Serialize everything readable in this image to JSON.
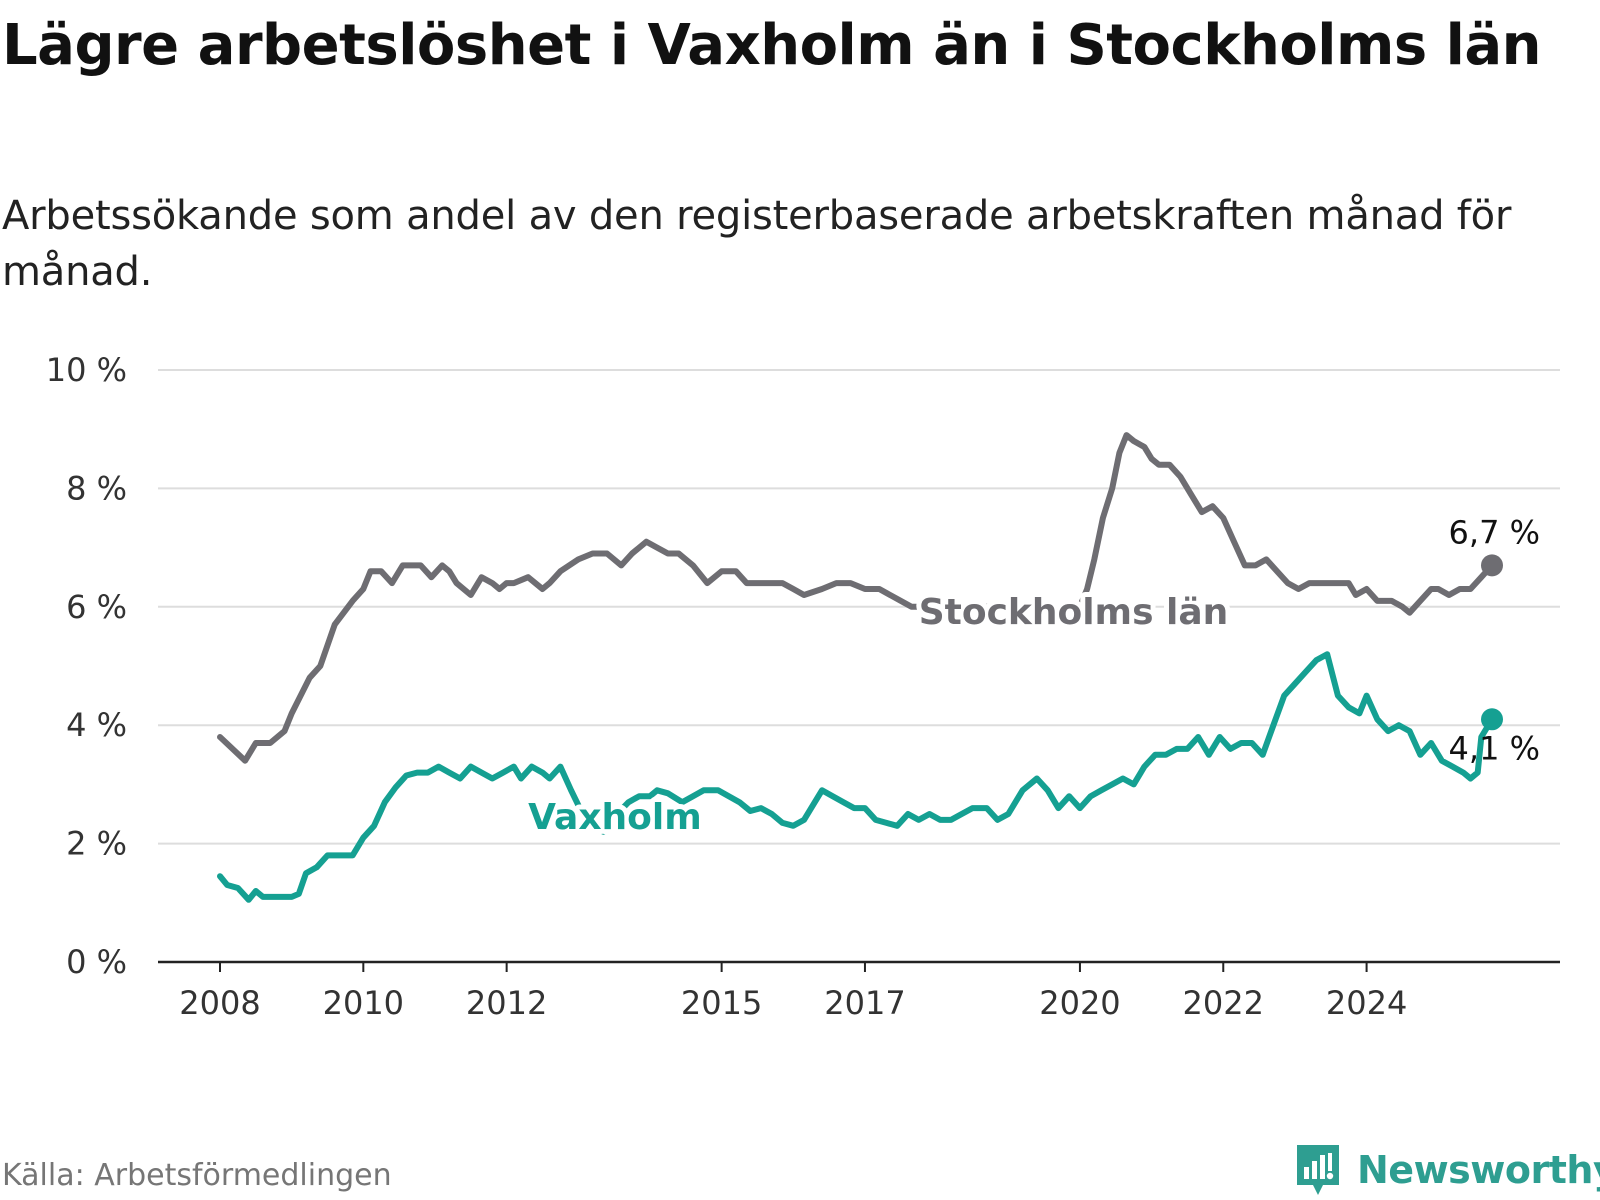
{
  "title": "Lägre arbetslöshet i Vaxholm än i Stockholms län",
  "subtitle": "Arbetssökande som andel av den registerbaserade arbetskraften månad för månad.",
  "source": "Källa: Arbetsförmedlingen",
  "brand": "Newsworthy",
  "colors": {
    "stockholm": "#6e6d72",
    "vaxholm": "#15a092",
    "grid": "#dddddd",
    "axis": "#222222",
    "brand": "#2e9e91"
  },
  "chart_data": {
    "type": "line",
    "title": "Lägre arbetslöshet i Vaxholm än i Stockholms län",
    "xlabel": "",
    "ylabel": "",
    "ylim": [
      0,
      10
    ],
    "xlim": [
      2007.8,
      2026.0
    ],
    "y_ticks": [
      0,
      2,
      4,
      6,
      8,
      10
    ],
    "y_tick_labels": [
      "0 %",
      "2 %",
      "4 %",
      "6 %",
      "8 %",
      "10 %"
    ],
    "x_ticks": [
      2008,
      2010,
      2012,
      2015,
      2017,
      2020,
      2022,
      2024
    ],
    "x_tick_labels": [
      "2008",
      "2010",
      "2012",
      "2015",
      "2017",
      "2020",
      "2022",
      "2024"
    ],
    "grid": true,
    "series": [
      {
        "name": "Stockholms län",
        "end_label": "6,7 %",
        "points": [
          [
            2008.0,
            3.8
          ],
          [
            2008.35,
            3.4
          ],
          [
            2008.5,
            3.7
          ],
          [
            2008.7,
            3.7
          ],
          [
            2008.9,
            3.9
          ],
          [
            2009.0,
            4.2
          ],
          [
            2009.25,
            4.8
          ],
          [
            2009.4,
            5.0
          ],
          [
            2009.6,
            5.7
          ],
          [
            2009.85,
            6.1
          ],
          [
            2010.0,
            6.3
          ],
          [
            2010.1,
            6.6
          ],
          [
            2010.25,
            6.6
          ],
          [
            2010.4,
            6.4
          ],
          [
            2010.55,
            6.7
          ],
          [
            2010.8,
            6.7
          ],
          [
            2010.95,
            6.5
          ],
          [
            2011.1,
            6.7
          ],
          [
            2011.2,
            6.6
          ],
          [
            2011.3,
            6.4
          ],
          [
            2011.5,
            6.2
          ],
          [
            2011.65,
            6.5
          ],
          [
            2011.8,
            6.4
          ],
          [
            2011.9,
            6.3
          ],
          [
            2012.0,
            6.4
          ],
          [
            2012.1,
            6.4
          ],
          [
            2012.3,
            6.5
          ],
          [
            2012.5,
            6.3
          ],
          [
            2012.6,
            6.4
          ],
          [
            2012.75,
            6.6
          ],
          [
            2013.0,
            6.8
          ],
          [
            2013.2,
            6.9
          ],
          [
            2013.4,
            6.9
          ],
          [
            2013.6,
            6.7
          ],
          [
            2013.75,
            6.9
          ],
          [
            2013.95,
            7.1
          ],
          [
            2014.1,
            7.0
          ],
          [
            2014.25,
            6.9
          ],
          [
            2014.4,
            6.9
          ],
          [
            2014.6,
            6.7
          ],
          [
            2014.8,
            6.4
          ],
          [
            2015.0,
            6.6
          ],
          [
            2015.2,
            6.6
          ],
          [
            2015.35,
            6.4
          ],
          [
            2015.6,
            6.4
          ],
          [
            2015.85,
            6.4
          ],
          [
            2016.0,
            6.3
          ],
          [
            2016.15,
            6.2
          ],
          [
            2016.4,
            6.3
          ],
          [
            2016.6,
            6.4
          ],
          [
            2016.8,
            6.4
          ],
          [
            2017.0,
            6.3
          ],
          [
            2017.2,
            6.3
          ],
          [
            2017.5,
            6.1
          ],
          [
            2017.65,
            6.0
          ],
          [
            2017.8,
            6.0
          ],
          [
            2017.95,
            6.1
          ],
          [
            2018.15,
            6.1
          ],
          [
            2018.5,
            6.0
          ],
          [
            2018.9,
            6.0
          ],
          [
            2019.3,
            5.95
          ],
          [
            2019.7,
            5.95
          ],
          [
            2020.0,
            6.0
          ],
          [
            2020.1,
            6.3
          ],
          [
            2020.2,
            6.8
          ],
          [
            2020.32,
            7.5
          ],
          [
            2020.45,
            8.0
          ],
          [
            2020.55,
            8.6
          ],
          [
            2020.65,
            8.9
          ],
          [
            2020.75,
            8.8
          ],
          [
            2020.9,
            8.7
          ],
          [
            2021.0,
            8.5
          ],
          [
            2021.1,
            8.4
          ],
          [
            2021.25,
            8.4
          ],
          [
            2021.4,
            8.2
          ],
          [
            2021.55,
            7.9
          ],
          [
            2021.7,
            7.6
          ],
          [
            2021.85,
            7.7
          ],
          [
            2022.0,
            7.5
          ],
          [
            2022.15,
            7.1
          ],
          [
            2022.3,
            6.7
          ],
          [
            2022.45,
            6.7
          ],
          [
            2022.6,
            6.8
          ],
          [
            2022.75,
            6.6
          ],
          [
            2022.9,
            6.4
          ],
          [
            2023.05,
            6.3
          ],
          [
            2023.2,
            6.4
          ],
          [
            2023.5,
            6.4
          ],
          [
            2023.75,
            6.4
          ],
          [
            2023.85,
            6.2
          ],
          [
            2024.0,
            6.3
          ],
          [
            2024.15,
            6.1
          ],
          [
            2024.35,
            6.1
          ],
          [
            2024.5,
            6.0
          ],
          [
            2024.6,
            5.9
          ],
          [
            2024.75,
            6.1
          ],
          [
            2024.9,
            6.3
          ],
          [
            2025.0,
            6.3
          ],
          [
            2025.15,
            6.2
          ],
          [
            2025.3,
            6.3
          ],
          [
            2025.45,
            6.3
          ],
          [
            2025.6,
            6.5
          ],
          [
            2025.75,
            6.7
          ]
        ]
      },
      {
        "name": "Vaxholm",
        "end_label": "4,1 %",
        "points": [
          [
            2008.0,
            1.45
          ],
          [
            2008.1,
            1.3
          ],
          [
            2008.25,
            1.25
          ],
          [
            2008.4,
            1.05
          ],
          [
            2008.5,
            1.2
          ],
          [
            2008.6,
            1.1
          ],
          [
            2008.8,
            1.1
          ],
          [
            2009.0,
            1.1
          ],
          [
            2009.1,
            1.15
          ],
          [
            2009.2,
            1.5
          ],
          [
            2009.35,
            1.6
          ],
          [
            2009.5,
            1.8
          ],
          [
            2009.65,
            1.8
          ],
          [
            2009.85,
            1.8
          ],
          [
            2010.0,
            2.1
          ],
          [
            2010.15,
            2.3
          ],
          [
            2010.3,
            2.7
          ],
          [
            2010.45,
            2.95
          ],
          [
            2010.6,
            3.15
          ],
          [
            2010.75,
            3.2
          ],
          [
            2010.9,
            3.2
          ],
          [
            2011.05,
            3.3
          ],
          [
            2011.2,
            3.2
          ],
          [
            2011.35,
            3.1
          ],
          [
            2011.5,
            3.3
          ],
          [
            2011.65,
            3.2
          ],
          [
            2011.8,
            3.1
          ],
          [
            2011.95,
            3.2
          ],
          [
            2012.1,
            3.3
          ],
          [
            2012.2,
            3.1
          ],
          [
            2012.35,
            3.3
          ],
          [
            2012.5,
            3.2
          ],
          [
            2012.6,
            3.1
          ],
          [
            2012.75,
            3.3
          ],
          [
            2012.9,
            2.9
          ],
          [
            2013.1,
            2.4
          ],
          [
            2013.2,
            2.3
          ],
          [
            2013.35,
            2.2
          ],
          [
            2013.5,
            2.45
          ],
          [
            2013.7,
            2.7
          ],
          [
            2013.85,
            2.8
          ],
          [
            2014.0,
            2.8
          ],
          [
            2014.1,
            2.9
          ],
          [
            2014.25,
            2.85
          ],
          [
            2014.45,
            2.7
          ],
          [
            2014.6,
            2.8
          ],
          [
            2014.75,
            2.9
          ],
          [
            2014.95,
            2.9
          ],
          [
            2015.1,
            2.8
          ],
          [
            2015.25,
            2.7
          ],
          [
            2015.4,
            2.55
          ],
          [
            2015.55,
            2.6
          ],
          [
            2015.7,
            2.5
          ],
          [
            2015.85,
            2.35
          ],
          [
            2016.0,
            2.3
          ],
          [
            2016.15,
            2.4
          ],
          [
            2016.25,
            2.6
          ],
          [
            2016.4,
            2.9
          ],
          [
            2016.55,
            2.8
          ],
          [
            2016.7,
            2.7
          ],
          [
            2016.85,
            2.6
          ],
          [
            2017.0,
            2.6
          ],
          [
            2017.15,
            2.4
          ],
          [
            2017.3,
            2.35
          ],
          [
            2017.45,
            2.3
          ],
          [
            2017.6,
            2.5
          ],
          [
            2017.75,
            2.4
          ],
          [
            2017.9,
            2.5
          ],
          [
            2018.05,
            2.4
          ],
          [
            2018.2,
            2.4
          ],
          [
            2018.35,
            2.5
          ],
          [
            2018.5,
            2.6
          ],
          [
            2018.7,
            2.6
          ],
          [
            2018.85,
            2.4
          ],
          [
            2019.0,
            2.5
          ],
          [
            2019.2,
            2.9
          ],
          [
            2019.4,
            3.1
          ],
          [
            2019.55,
            2.9
          ],
          [
            2019.7,
            2.6
          ],
          [
            2019.85,
            2.8
          ],
          [
            2020.0,
            2.6
          ],
          [
            2020.15,
            2.8
          ],
          [
            2020.3,
            2.9
          ],
          [
            2020.45,
            3.0
          ],
          [
            2020.6,
            3.1
          ],
          [
            2020.75,
            3.0
          ],
          [
            2020.9,
            3.3
          ],
          [
            2021.05,
            3.5
          ],
          [
            2021.2,
            3.5
          ],
          [
            2021.35,
            3.6
          ],
          [
            2021.5,
            3.6
          ],
          [
            2021.65,
            3.8
          ],
          [
            2021.8,
            3.5
          ],
          [
            2021.95,
            3.8
          ],
          [
            2022.1,
            3.6
          ],
          [
            2022.25,
            3.7
          ],
          [
            2022.4,
            3.7
          ],
          [
            2022.55,
            3.5
          ],
          [
            2022.7,
            4.0
          ],
          [
            2022.85,
            4.5
          ],
          [
            2023.0,
            4.7
          ],
          [
            2023.15,
            4.9
          ],
          [
            2023.3,
            5.1
          ],
          [
            2023.45,
            5.2
          ],
          [
            2023.6,
            4.5
          ],
          [
            2023.75,
            4.3
          ],
          [
            2023.9,
            4.2
          ],
          [
            2024.0,
            4.5
          ],
          [
            2024.15,
            4.1
          ],
          [
            2024.3,
            3.9
          ],
          [
            2024.45,
            4.0
          ],
          [
            2024.6,
            3.9
          ],
          [
            2024.75,
            3.5
          ],
          [
            2024.9,
            3.7
          ],
          [
            2025.05,
            3.4
          ],
          [
            2025.2,
            3.3
          ],
          [
            2025.35,
            3.2
          ],
          [
            2025.45,
            3.1
          ],
          [
            2025.55,
            3.2
          ],
          [
            2025.6,
            3.8
          ],
          [
            2025.75,
            4.1
          ]
        ]
      }
    ]
  }
}
